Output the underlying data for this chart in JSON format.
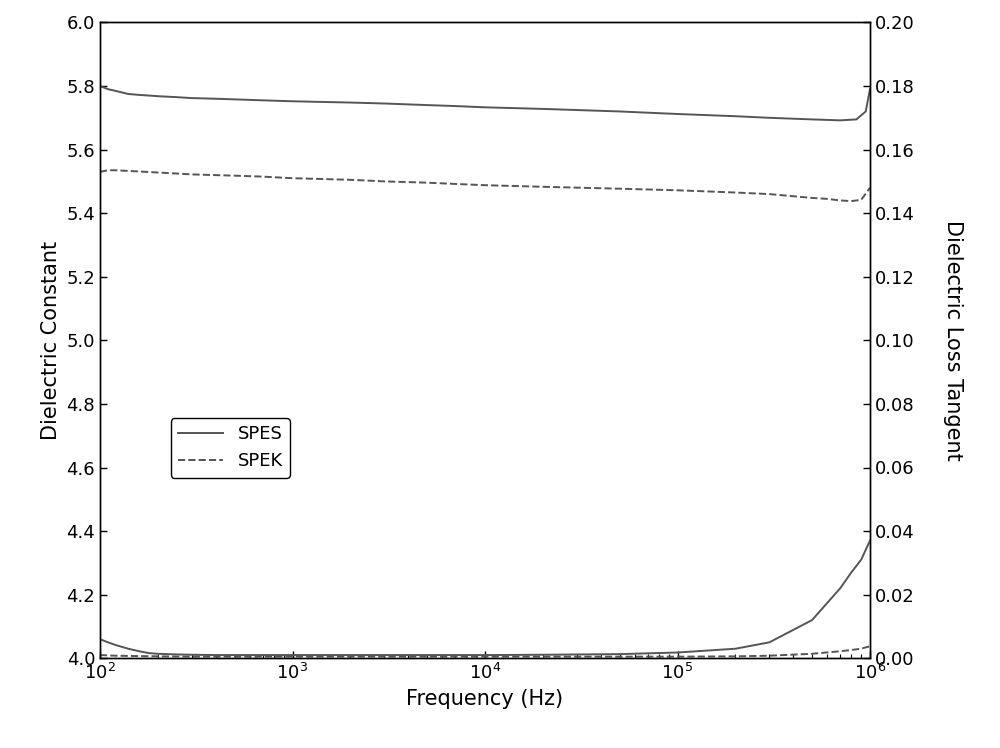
{
  "title": "",
  "xlabel": "Frequency (Hz)",
  "ylabel_left": "Dielectric Constant",
  "ylabel_right": "Dielectric Loss Tangent",
  "ylim_left": [
    4.0,
    6.0
  ],
  "ylim_right": [
    0.0,
    0.2
  ],
  "xlim": [
    100,
    1000000
  ],
  "line_color": "#555555",
  "background_color": "#ffffff",
  "legend_labels": [
    "SPES",
    "SPEK"
  ],
  "SPES_dielectric_freq": [
    100,
    110,
    120,
    140,
    160,
    180,
    200,
    250,
    300,
    400,
    500,
    700,
    1000,
    2000,
    3000,
    5000,
    7000,
    10000,
    20000,
    50000,
    100000,
    200000,
    300000,
    500000,
    700000,
    850000,
    950000,
    1000000
  ],
  "SPES_dielectric_val": [
    5.8,
    5.79,
    5.785,
    5.775,
    5.772,
    5.77,
    5.768,
    5.765,
    5.762,
    5.76,
    5.758,
    5.755,
    5.752,
    5.748,
    5.745,
    5.74,
    5.737,
    5.733,
    5.728,
    5.72,
    5.712,
    5.705,
    5.7,
    5.695,
    5.692,
    5.695,
    5.72,
    5.79
  ],
  "SPEK_dielectric_freq": [
    100,
    110,
    120,
    150,
    200,
    300,
    500,
    700,
    1000,
    2000,
    3000,
    5000,
    7000,
    10000,
    20000,
    50000,
    100000,
    200000,
    300000,
    500000,
    600000,
    700000,
    800000,
    900000,
    1000000
  ],
  "SPEK_dielectric_val": [
    5.53,
    5.535,
    5.535,
    5.532,
    5.528,
    5.522,
    5.518,
    5.515,
    5.51,
    5.505,
    5.5,
    5.496,
    5.492,
    5.488,
    5.483,
    5.477,
    5.472,
    5.465,
    5.46,
    5.448,
    5.445,
    5.44,
    5.438,
    5.442,
    5.48
  ],
  "SPES_loss_freq": [
    100,
    110,
    120,
    140,
    160,
    180,
    200,
    250,
    300,
    400,
    500,
    700,
    1000,
    2000,
    3000,
    5000,
    7000,
    10000,
    20000,
    50000,
    100000,
    200000,
    300000,
    500000,
    700000,
    800000,
    900000,
    1000000
  ],
  "SPES_loss_val": [
    0.006,
    0.005,
    0.0042,
    0.003,
    0.0022,
    0.0016,
    0.0014,
    0.0012,
    0.0011,
    0.001,
    0.001,
    0.001,
    0.001,
    0.001,
    0.001,
    0.001,
    0.001,
    0.001,
    0.0011,
    0.0013,
    0.0018,
    0.003,
    0.005,
    0.012,
    0.022,
    0.027,
    0.031,
    0.037
  ],
  "SPEK_loss_freq": [
    100,
    110,
    120,
    150,
    200,
    300,
    500,
    700,
    1000,
    2000,
    3000,
    5000,
    7000,
    10000,
    20000,
    50000,
    100000,
    200000,
    300000,
    500000,
    700000,
    800000,
    900000,
    1000000
  ],
  "SPEK_loss_val": [
    0.001,
    0.0009,
    0.0008,
    0.0007,
    0.0006,
    0.0005,
    0.0005,
    0.0005,
    0.0005,
    0.0005,
    0.0005,
    0.0005,
    0.0005,
    0.0005,
    0.0005,
    0.0005,
    0.0005,
    0.0006,
    0.0008,
    0.0014,
    0.0022,
    0.0026,
    0.003,
    0.0038
  ],
  "yticks_left": [
    4.0,
    4.2,
    4.4,
    4.6,
    4.8,
    5.0,
    5.2,
    5.4,
    5.6,
    5.8,
    6.0
  ],
  "yticks_right": [
    0.0,
    0.02,
    0.04,
    0.06,
    0.08,
    0.1,
    0.12,
    0.14,
    0.16,
    0.18,
    0.2
  ],
  "xticks": [
    100,
    1000,
    10000,
    100000,
    1000000
  ],
  "xlabel_fontsize": 15,
  "ylabel_fontsize": 15,
  "tick_labelsize": 13,
  "legend_fontsize": 13,
  "linewidth": 1.4
}
